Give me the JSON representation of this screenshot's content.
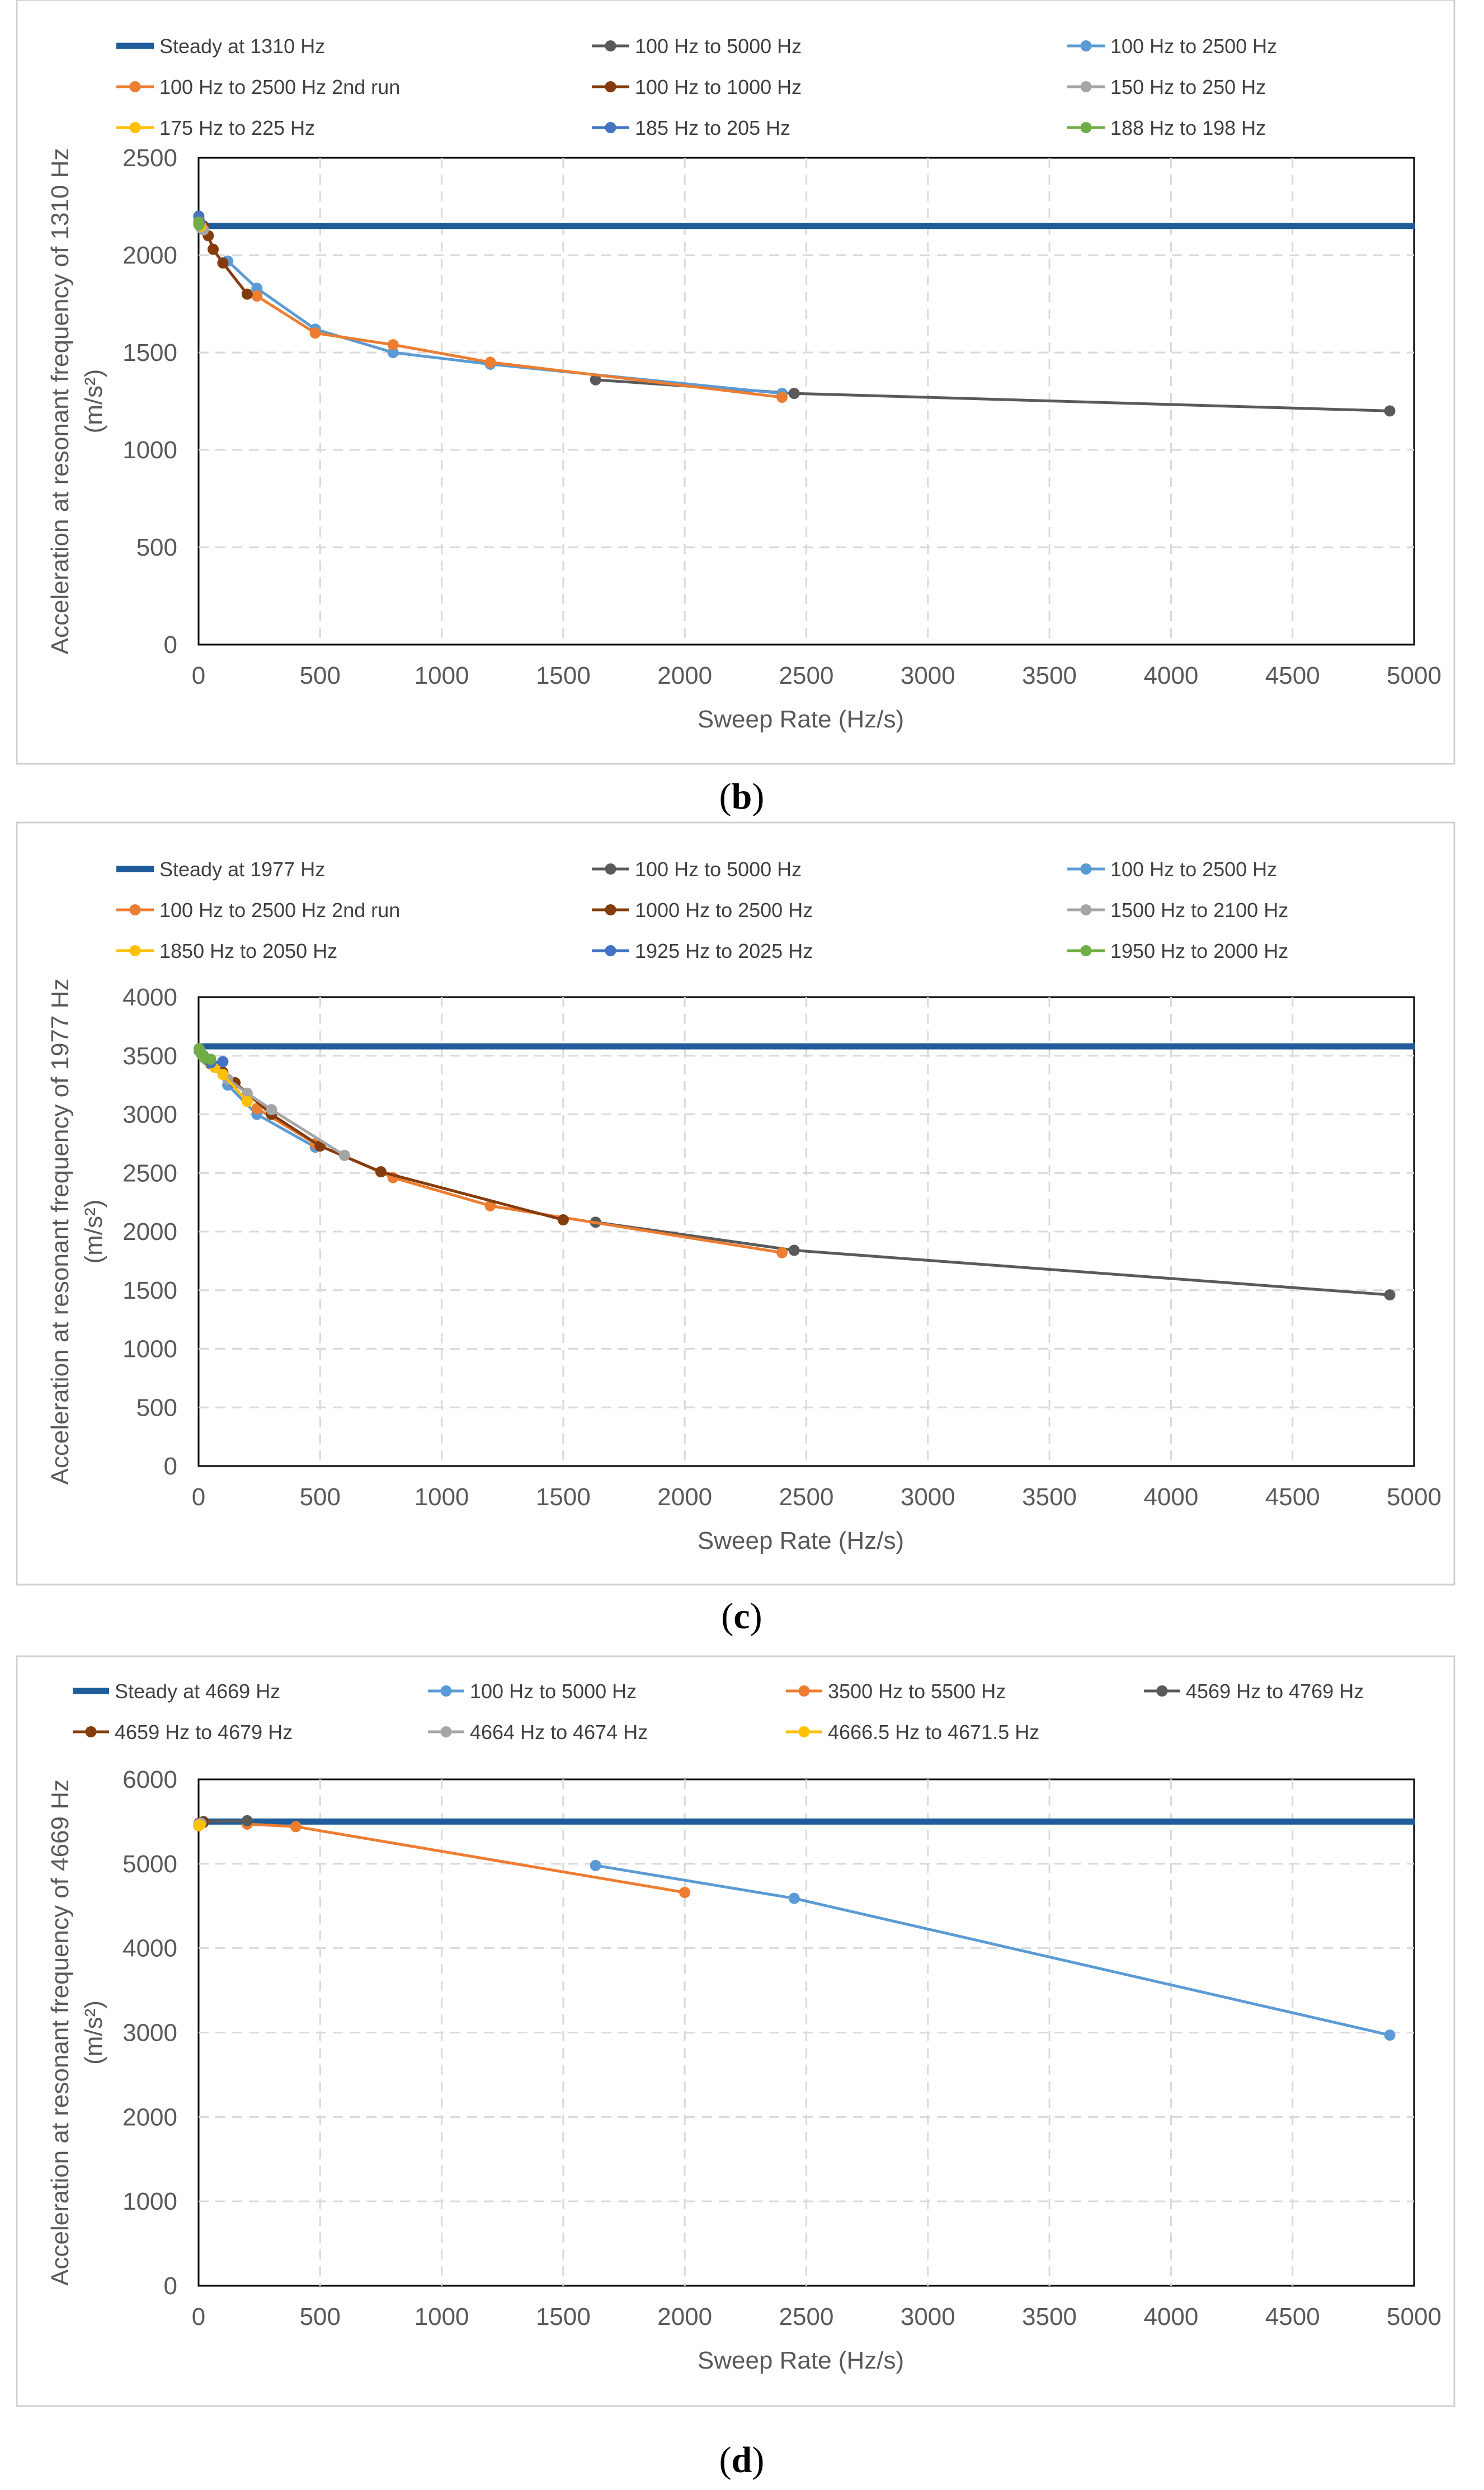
{
  "chart_data": [
    {
      "type": "line",
      "caption": "b",
      "xlabel": "Sweep Rate (Hz/s)",
      "ylabel_line1": "Acceleration at resonant frequency of 1310 Hz",
      "ylabel_line2": "(m/s²)",
      "xlim": [
        0,
        5000
      ],
      "ylim": [
        0,
        2500
      ],
      "xticks": [
        0,
        500,
        1000,
        1500,
        2000,
        2500,
        3000,
        3500,
        4000,
        4500,
        5000
      ],
      "yticks": [
        0,
        500,
        1000,
        1500,
        2000,
        2500
      ],
      "grid": true,
      "legend_position": "top",
      "series": [
        {
          "name": "Steady at 1310 Hz",
          "color": "#1f5c99",
          "steady": true,
          "value": 2150
        },
        {
          "name": "100 Hz to 5000 Hz",
          "color": "#5a5a5a",
          "x": [
            1633,
            2450,
            4900
          ],
          "y": [
            1360,
            1290,
            1200
          ]
        },
        {
          "name": "100 Hz to 2500 Hz",
          "color": "#5b9bd5",
          "x": [
            120,
            240,
            480,
            800,
            1200,
            2400
          ],
          "y": [
            1970,
            1830,
            1620,
            1500,
            1440,
            1290
          ]
        },
        {
          "name": "100 Hz to 2500 Hz 2nd run",
          "color": "#ed7d31",
          "x": [
            240,
            480,
            800,
            1200,
            2400
          ],
          "y": [
            1790,
            1600,
            1540,
            1450,
            1270
          ]
        },
        {
          "name": "100 Hz to 1000 Hz",
          "color": "#843c0c",
          "x": [
            20,
            40,
            60,
            100,
            200
          ],
          "y": [
            2150,
            2100,
            2030,
            1960,
            1800
          ]
        },
        {
          "name": "150 Hz to 250 Hz",
          "color": "#a5a5a5",
          "x": [
            5,
            10,
            20
          ],
          "y": [
            2160,
            2140,
            2130
          ]
        },
        {
          "name": "175 Hz to 225 Hz",
          "color": "#ffc000",
          "x": [
            2,
            5,
            10
          ],
          "y": [
            2170,
            2160,
            2150
          ]
        },
        {
          "name": "185 Hz to 205 Hz",
          "color": "#4472c4",
          "x": [
            1,
            2,
            4
          ],
          "y": [
            2200,
            2180,
            2165
          ]
        },
        {
          "name": "188 Hz to 198 Hz",
          "color": "#70ad47",
          "x": [
            0.5,
            1,
            2
          ],
          "y": [
            2170,
            2160,
            2155
          ]
        }
      ]
    },
    {
      "type": "line",
      "caption": "c",
      "xlabel": "Sweep Rate (Hz/s)",
      "ylabel_line1": "Acceleration at resonant frequency of 1977 Hz",
      "ylabel_line2": "(m/s²)",
      "xlim": [
        0,
        5000
      ],
      "ylim": [
        0,
        4000
      ],
      "xticks": [
        0,
        500,
        1000,
        1500,
        2000,
        2500,
        3000,
        3500,
        4000,
        4500,
        5000
      ],
      "yticks": [
        0,
        500,
        1000,
        1500,
        2000,
        2500,
        3000,
        3500,
        4000
      ],
      "grid": true,
      "legend_position": "top",
      "series": [
        {
          "name": "Steady at 1977 Hz",
          "color": "#1f5c99",
          "steady": true,
          "value": 3580
        },
        {
          "name": "100 Hz to 5000 Hz",
          "color": "#5a5a5a",
          "x": [
            1633,
            2450,
            4900
          ],
          "y": [
            2080,
            1840,
            1460
          ]
        },
        {
          "name": "100 Hz to 2500 Hz",
          "color": "#5b9bd5",
          "x": [
            120,
            240,
            480
          ],
          "y": [
            3250,
            3000,
            2720
          ]
        },
        {
          "name": "100 Hz to 2500 Hz 2nd run",
          "color": "#ed7d31",
          "x": [
            240,
            480,
            800,
            1200,
            2400
          ],
          "y": [
            3050,
            2750,
            2460,
            2220,
            1820
          ]
        },
        {
          "name": "1000 Hz to 2500 Hz",
          "color": "#843c0c",
          "x": [
            50,
            100,
            150,
            300,
            500,
            750,
            1500
          ],
          "y": [
            3430,
            3360,
            3270,
            3000,
            2730,
            2510,
            2100
          ]
        },
        {
          "name": "1500 Hz to 2100 Hz",
          "color": "#a5a5a5",
          "x": [
            20,
            40,
            60,
            120,
            200,
            300,
            600
          ],
          "y": [
            3500,
            3460,
            3420,
            3300,
            3180,
            3040,
            2650
          ]
        },
        {
          "name": "1850 Hz to 2050 Hz",
          "color": "#ffc000",
          "x": [
            7,
            14,
            20,
            40,
            67,
            100,
            200
          ],
          "y": [
            3530,
            3510,
            3490,
            3450,
            3400,
            3340,
            3110
          ]
        },
        {
          "name": "1925 Hz to 2025 Hz",
          "color": "#4472c4",
          "x": [
            3,
            7,
            10,
            20,
            33,
            50,
            100
          ],
          "y": [
            3540,
            3530,
            3520,
            3500,
            3470,
            3440,
            3450
          ]
        },
        {
          "name": "1950 Hz to 2000 Hz",
          "color": "#70ad47",
          "x": [
            2,
            4,
            5,
            10,
            17,
            25,
            50
          ],
          "y": [
            3560,
            3550,
            3540,
            3520,
            3500,
            3480,
            3470
          ]
        }
      ]
    },
    {
      "type": "line",
      "caption": "d",
      "xlabel": "Sweep Rate (Hz/s)",
      "ylabel_line1": "Acceleration at resonant frequency of 4669 Hz",
      "ylabel_line2": "(m/s²)",
      "xlim": [
        0,
        5000
      ],
      "ylim": [
        0,
        6000
      ],
      "xticks": [
        0,
        500,
        1000,
        1500,
        2000,
        2500,
        3000,
        3500,
        4000,
        4500,
        5000
      ],
      "yticks": [
        0,
        1000,
        2000,
        3000,
        4000,
        5000,
        6000
      ],
      "grid": true,
      "legend_position": "top",
      "series": [
        {
          "name": "Steady at 4669 Hz",
          "color": "#1f5c99",
          "steady": true,
          "value": 5500
        },
        {
          "name": "100 Hz to 5000 Hz",
          "color": "#5b9bd5",
          "x": [
            1633,
            2450,
            4900
          ],
          "y": [
            4980,
            4590,
            2970
          ]
        },
        {
          "name": "3500 Hz to 5500 Hz",
          "color": "#ed7d31",
          "x": [
            200,
            400,
            2000
          ],
          "y": [
            5470,
            5440,
            4660
          ]
        },
        {
          "name": "4569 Hz to 4769 Hz",
          "color": "#5a5a5a",
          "x": [
            20,
            200
          ],
          "y": [
            5500,
            5510
          ]
        },
        {
          "name": "4659 Hz to 4679 Hz",
          "color": "#843c0c",
          "x": [
            2,
            20
          ],
          "y": [
            5480,
            5490
          ]
        },
        {
          "name": "4664 Hz to 4674 Hz",
          "color": "#a5a5a5",
          "x": [
            1,
            10
          ],
          "y": [
            5470,
            5480
          ]
        },
        {
          "name": "4666.5 Hz to 4671.5 Hz",
          "color": "#ffc000",
          "x": [
            0.5,
            5
          ],
          "y": [
            5450,
            5460
          ]
        }
      ]
    }
  ]
}
